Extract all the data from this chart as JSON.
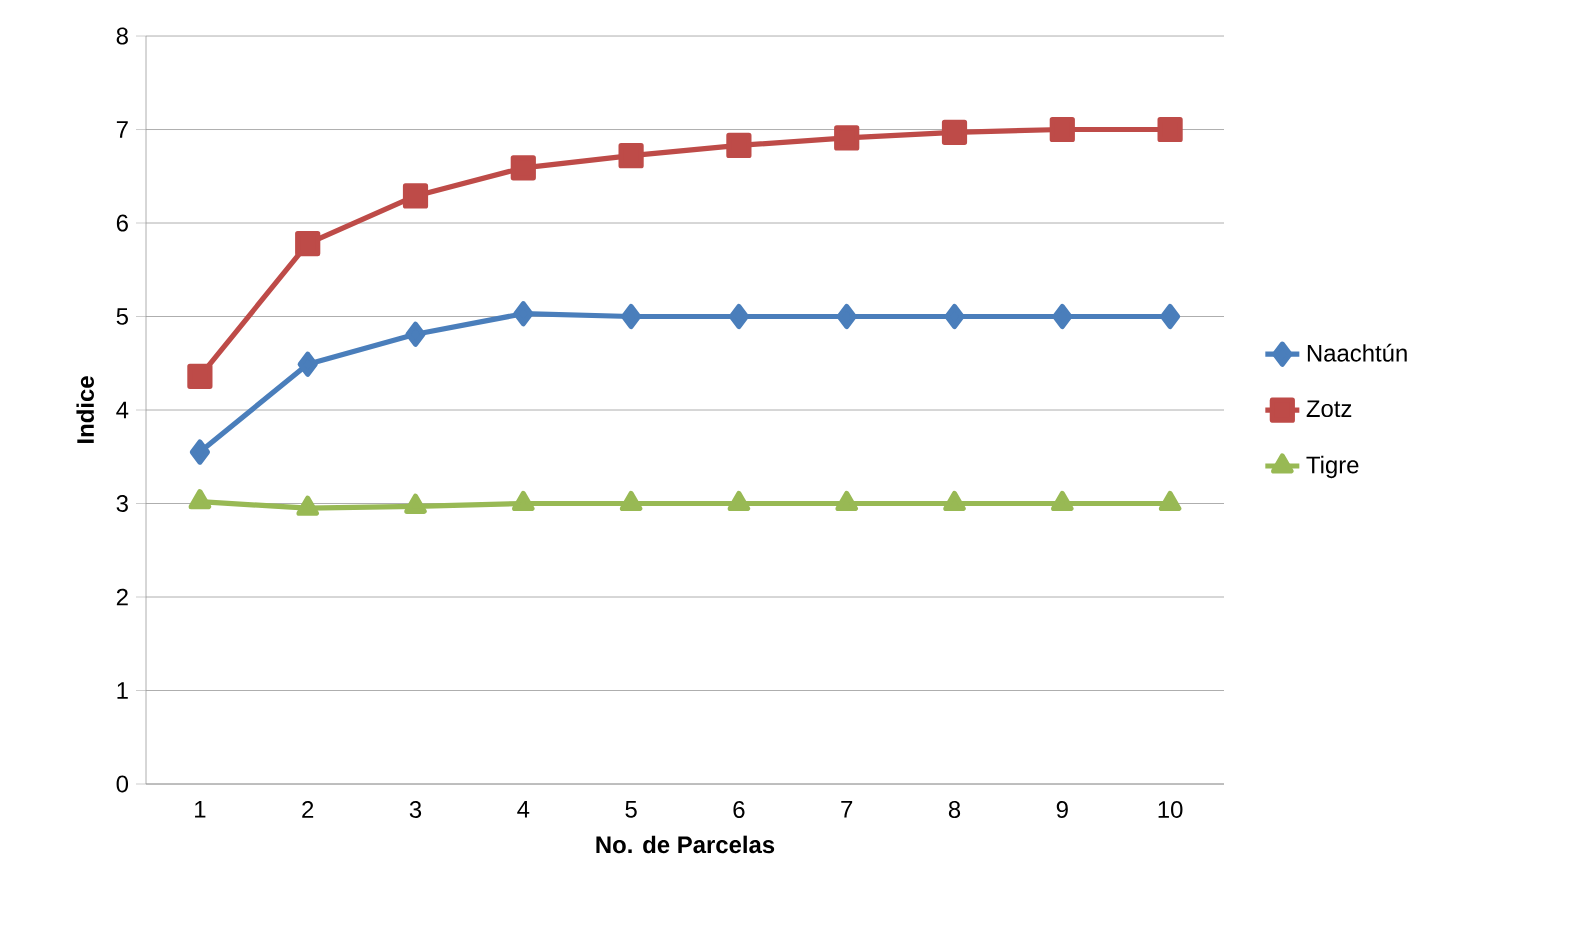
{
  "chart_data": {
    "type": "line",
    "xlabel": "No. de Parcelas",
    "ylabel": "Indice",
    "categories": [
      "1",
      "2",
      "3",
      "4",
      "5",
      "6",
      "7",
      "8",
      "9",
      "10"
    ],
    "series": [
      {
        "name": "Naachtún",
        "color": "#4a7ebb",
        "marker": "diamond",
        "values": [
          3.55,
          4.49,
          4.81,
          5.03,
          5.0,
          5.0,
          5.0,
          5.0,
          5.0,
          5.0
        ]
      },
      {
        "name": "Zotz",
        "color": "#be4b48",
        "marker": "square",
        "values": [
          4.36,
          5.78,
          6.29,
          6.59,
          6.72,
          6.83,
          6.91,
          6.97,
          7.0,
          7.0
        ]
      },
      {
        "name": "Tigre",
        "color": "#98b954",
        "marker": "triangle",
        "values": [
          3.02,
          2.95,
          2.97,
          3.0,
          3.0,
          3.0,
          3.0,
          3.0,
          3.0,
          3.0
        ]
      }
    ],
    "ylim": [
      0,
      8
    ],
    "yticks": [
      0,
      1,
      2,
      3,
      4,
      5,
      6,
      7,
      8
    ],
    "grid": "y",
    "legend": "right",
    "line_style": "solid"
  }
}
